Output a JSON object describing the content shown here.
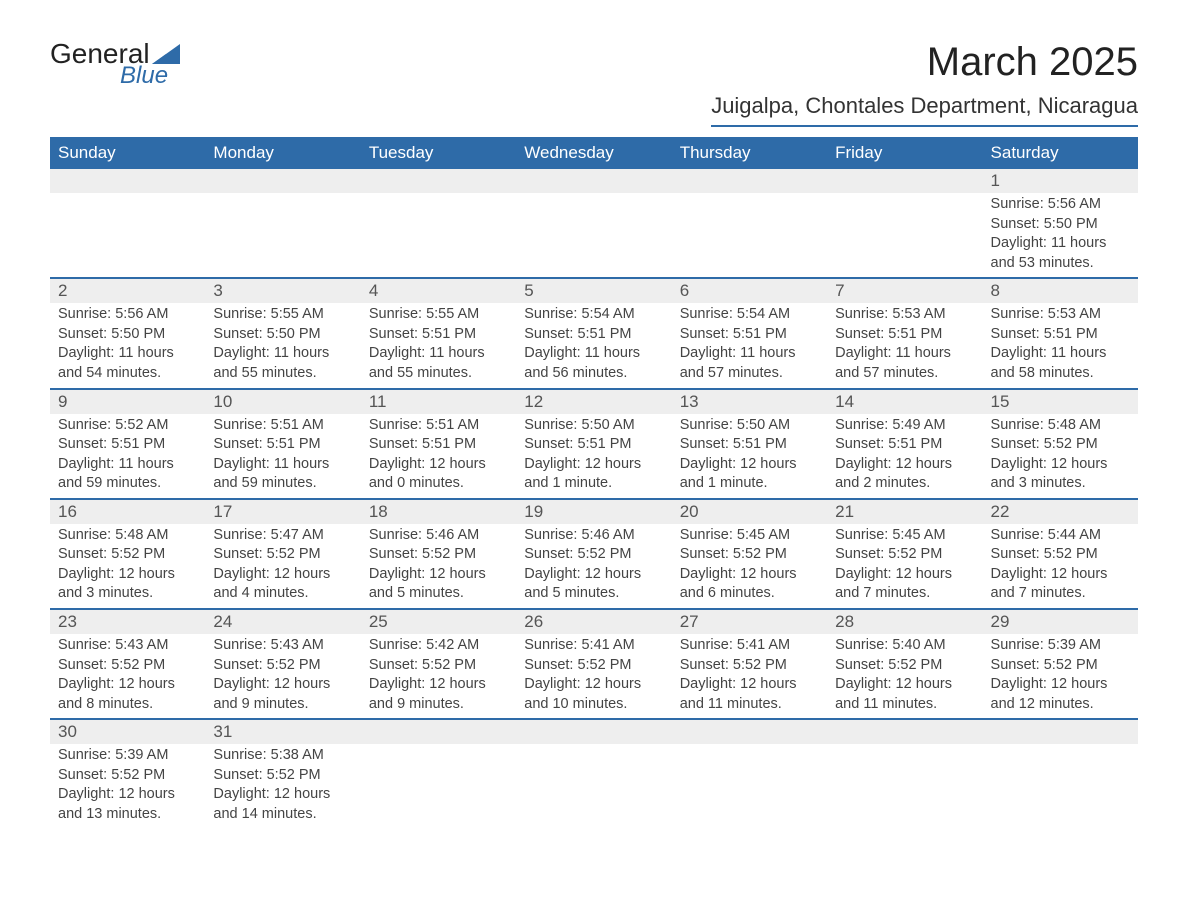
{
  "brand": {
    "line1": "General",
    "line2": "Blue"
  },
  "title": "March 2025",
  "location": "Juigalpa, Chontales Department, Nicaragua",
  "colors": {
    "header_bg": "#2e6ba8",
    "header_fg": "#ffffff",
    "daynum_bg": "#eeeeee",
    "border": "#2e6ba8",
    "text": "#333333"
  },
  "weekdays": [
    "Sunday",
    "Monday",
    "Tuesday",
    "Wednesday",
    "Thursday",
    "Friday",
    "Saturday"
  ],
  "weeks": [
    [
      null,
      null,
      null,
      null,
      null,
      null,
      {
        "n": "1",
        "sr": "Sunrise: 5:56 AM",
        "ss": "Sunset: 5:50 PM",
        "d1": "Daylight: 11 hours",
        "d2": "and 53 minutes."
      }
    ],
    [
      {
        "n": "2",
        "sr": "Sunrise: 5:56 AM",
        "ss": "Sunset: 5:50 PM",
        "d1": "Daylight: 11 hours",
        "d2": "and 54 minutes."
      },
      {
        "n": "3",
        "sr": "Sunrise: 5:55 AM",
        "ss": "Sunset: 5:50 PM",
        "d1": "Daylight: 11 hours",
        "d2": "and 55 minutes."
      },
      {
        "n": "4",
        "sr": "Sunrise: 5:55 AM",
        "ss": "Sunset: 5:51 PM",
        "d1": "Daylight: 11 hours",
        "d2": "and 55 minutes."
      },
      {
        "n": "5",
        "sr": "Sunrise: 5:54 AM",
        "ss": "Sunset: 5:51 PM",
        "d1": "Daylight: 11 hours",
        "d2": "and 56 minutes."
      },
      {
        "n": "6",
        "sr": "Sunrise: 5:54 AM",
        "ss": "Sunset: 5:51 PM",
        "d1": "Daylight: 11 hours",
        "d2": "and 57 minutes."
      },
      {
        "n": "7",
        "sr": "Sunrise: 5:53 AM",
        "ss": "Sunset: 5:51 PM",
        "d1": "Daylight: 11 hours",
        "d2": "and 57 minutes."
      },
      {
        "n": "8",
        "sr": "Sunrise: 5:53 AM",
        "ss": "Sunset: 5:51 PM",
        "d1": "Daylight: 11 hours",
        "d2": "and 58 minutes."
      }
    ],
    [
      {
        "n": "9",
        "sr": "Sunrise: 5:52 AM",
        "ss": "Sunset: 5:51 PM",
        "d1": "Daylight: 11 hours",
        "d2": "and 59 minutes."
      },
      {
        "n": "10",
        "sr": "Sunrise: 5:51 AM",
        "ss": "Sunset: 5:51 PM",
        "d1": "Daylight: 11 hours",
        "d2": "and 59 minutes."
      },
      {
        "n": "11",
        "sr": "Sunrise: 5:51 AM",
        "ss": "Sunset: 5:51 PM",
        "d1": "Daylight: 12 hours",
        "d2": "and 0 minutes."
      },
      {
        "n": "12",
        "sr": "Sunrise: 5:50 AM",
        "ss": "Sunset: 5:51 PM",
        "d1": "Daylight: 12 hours",
        "d2": "and 1 minute."
      },
      {
        "n": "13",
        "sr": "Sunrise: 5:50 AM",
        "ss": "Sunset: 5:51 PM",
        "d1": "Daylight: 12 hours",
        "d2": "and 1 minute."
      },
      {
        "n": "14",
        "sr": "Sunrise: 5:49 AM",
        "ss": "Sunset: 5:51 PM",
        "d1": "Daylight: 12 hours",
        "d2": "and 2 minutes."
      },
      {
        "n": "15",
        "sr": "Sunrise: 5:48 AM",
        "ss": "Sunset: 5:52 PM",
        "d1": "Daylight: 12 hours",
        "d2": "and 3 minutes."
      }
    ],
    [
      {
        "n": "16",
        "sr": "Sunrise: 5:48 AM",
        "ss": "Sunset: 5:52 PM",
        "d1": "Daylight: 12 hours",
        "d2": "and 3 minutes."
      },
      {
        "n": "17",
        "sr": "Sunrise: 5:47 AM",
        "ss": "Sunset: 5:52 PM",
        "d1": "Daylight: 12 hours",
        "d2": "and 4 minutes."
      },
      {
        "n": "18",
        "sr": "Sunrise: 5:46 AM",
        "ss": "Sunset: 5:52 PM",
        "d1": "Daylight: 12 hours",
        "d2": "and 5 minutes."
      },
      {
        "n": "19",
        "sr": "Sunrise: 5:46 AM",
        "ss": "Sunset: 5:52 PM",
        "d1": "Daylight: 12 hours",
        "d2": "and 5 minutes."
      },
      {
        "n": "20",
        "sr": "Sunrise: 5:45 AM",
        "ss": "Sunset: 5:52 PM",
        "d1": "Daylight: 12 hours",
        "d2": "and 6 minutes."
      },
      {
        "n": "21",
        "sr": "Sunrise: 5:45 AM",
        "ss": "Sunset: 5:52 PM",
        "d1": "Daylight: 12 hours",
        "d2": "and 7 minutes."
      },
      {
        "n": "22",
        "sr": "Sunrise: 5:44 AM",
        "ss": "Sunset: 5:52 PM",
        "d1": "Daylight: 12 hours",
        "d2": "and 7 minutes."
      }
    ],
    [
      {
        "n": "23",
        "sr": "Sunrise: 5:43 AM",
        "ss": "Sunset: 5:52 PM",
        "d1": "Daylight: 12 hours",
        "d2": "and 8 minutes."
      },
      {
        "n": "24",
        "sr": "Sunrise: 5:43 AM",
        "ss": "Sunset: 5:52 PM",
        "d1": "Daylight: 12 hours",
        "d2": "and 9 minutes."
      },
      {
        "n": "25",
        "sr": "Sunrise: 5:42 AM",
        "ss": "Sunset: 5:52 PM",
        "d1": "Daylight: 12 hours",
        "d2": "and 9 minutes."
      },
      {
        "n": "26",
        "sr": "Sunrise: 5:41 AM",
        "ss": "Sunset: 5:52 PM",
        "d1": "Daylight: 12 hours",
        "d2": "and 10 minutes."
      },
      {
        "n": "27",
        "sr": "Sunrise: 5:41 AM",
        "ss": "Sunset: 5:52 PM",
        "d1": "Daylight: 12 hours",
        "d2": "and 11 minutes."
      },
      {
        "n": "28",
        "sr": "Sunrise: 5:40 AM",
        "ss": "Sunset: 5:52 PM",
        "d1": "Daylight: 12 hours",
        "d2": "and 11 minutes."
      },
      {
        "n": "29",
        "sr": "Sunrise: 5:39 AM",
        "ss": "Sunset: 5:52 PM",
        "d1": "Daylight: 12 hours",
        "d2": "and 12 minutes."
      }
    ],
    [
      {
        "n": "30",
        "sr": "Sunrise: 5:39 AM",
        "ss": "Sunset: 5:52 PM",
        "d1": "Daylight: 12 hours",
        "d2": "and 13 minutes."
      },
      {
        "n": "31",
        "sr": "Sunrise: 5:38 AM",
        "ss": "Sunset: 5:52 PM",
        "d1": "Daylight: 12 hours",
        "d2": "and 14 minutes."
      },
      null,
      null,
      null,
      null,
      null
    ]
  ]
}
